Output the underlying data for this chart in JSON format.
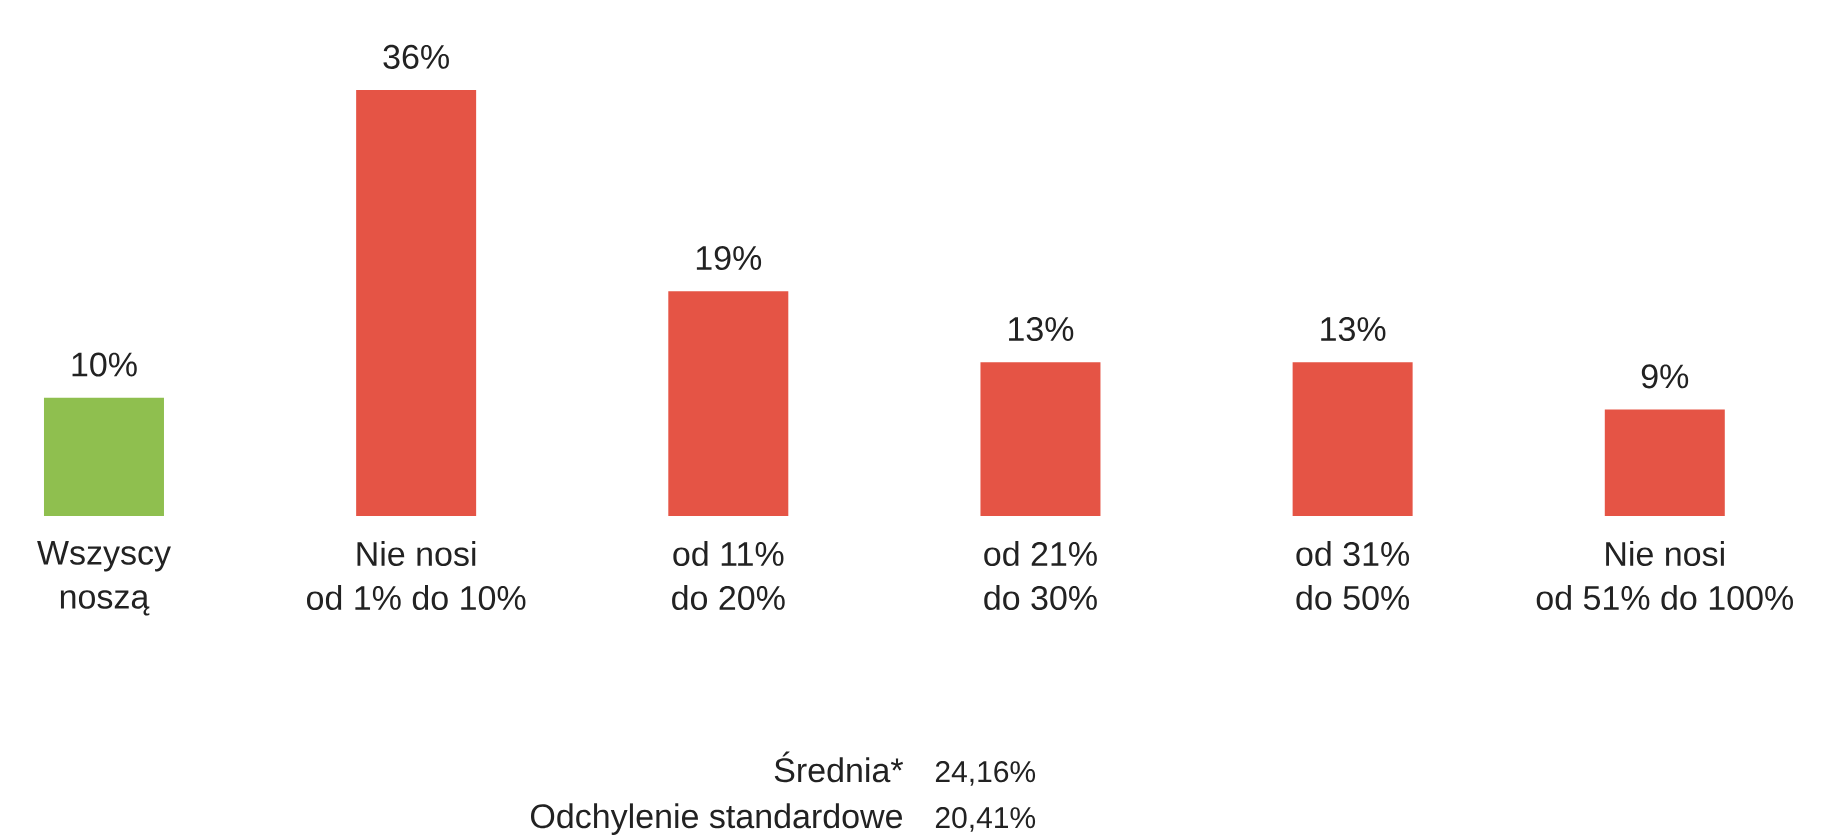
{
  "chart_data": {
    "type": "bar",
    "categories": [
      "Wszyscy\nnoszą",
      "Nie nosi\nod 1% do 10%",
      "od 11%\ndo 20%",
      "od 21%\ndo 30%",
      "od 31%\ndo 50%",
      "Nie nosi\nod 51% do 100%"
    ],
    "values": [
      10,
      36,
      19,
      13,
      13,
      9
    ],
    "value_labels": [
      "10%",
      "36%",
      "19%",
      "13%",
      "13%",
      "9%"
    ],
    "colors": [
      "#8fbf4f",
      "#e55445",
      "#e55445",
      "#e55445",
      "#e55445",
      "#e55445"
    ],
    "annotations": [
      "Średnia*",
      "24,16%",
      "Odchylenie standardowe",
      "20,41%"
    ]
  }
}
